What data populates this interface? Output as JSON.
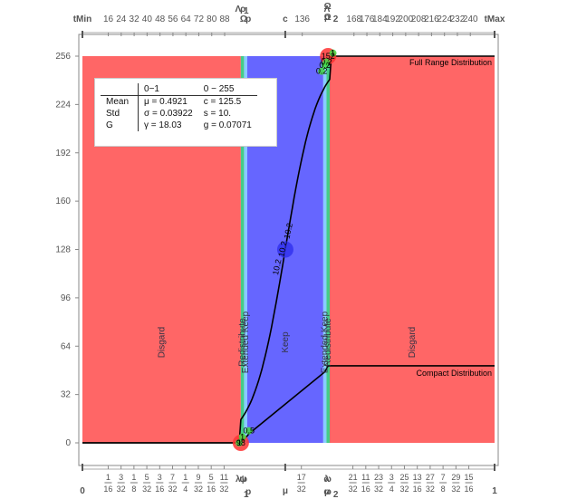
{
  "chart_data": {
    "type": "line",
    "x": {
      "range": [
        0,
        255
      ],
      "top_ticks": [
        "16",
        "24",
        "32",
        "40",
        "48",
        "56",
        "64",
        "72",
        "80",
        "88",
        "136",
        "168",
        "176",
        "184",
        "192",
        "200",
        "208",
        "216",
        "224",
        "232",
        "240"
      ],
      "top_tick_values": [
        16,
        24,
        32,
        40,
        48,
        56,
        64,
        72,
        80,
        88,
        136,
        168,
        176,
        184,
        192,
        200,
        208,
        216,
        224,
        232,
        240
      ],
      "top_special": [
        {
          "label": "tMin",
          "value": 0
        },
        {
          "label": "c",
          "value": 125.5
        },
        {
          "label": "tMax",
          "value": 255
        }
      ],
      "top_marker_labels": [
        {
          "label": "Λ",
          "value": 98
        },
        {
          "label": "Ω",
          "value": 98
        },
        {
          "label": "ρ",
          "value": 101
        },
        {
          "label": "p",
          "value": 101
        },
        {
          "label": "1",
          "value": 103
        },
        {
          "label": "Ω",
          "value": 150
        },
        {
          "label": "Λ",
          "value": 153
        },
        {
          "label": "Ω",
          "value": 150
        },
        {
          "label": "p",
          "value": 153
        },
        {
          "label": "2",
          "value": 155
        }
      ],
      "bottom_ticks_values": [
        0.0625,
        0.09375,
        0.125,
        0.15625,
        0.1875,
        0.21875,
        0.25,
        0.28125,
        0.3125,
        0.34375,
        0.53125,
        0.65625,
        0.6875,
        0.71875,
        0.75,
        0.78125,
        0.8125,
        0.84375,
        0.875,
        0.90625,
        0.9375
      ],
      "bottom_ticks_num": [
        "1",
        "3",
        "1",
        "5",
        "3",
        "7",
        "1",
        "9",
        "5",
        "11",
        "17",
        "21",
        "11",
        "23",
        "3",
        "25",
        "13",
        "27",
        "7",
        "29",
        "15"
      ],
      "bottom_ticks_den": [
        "16",
        "32",
        "8",
        "32",
        "16",
        "32",
        "4",
        "32",
        "16",
        "32",
        "32",
        "32",
        "16",
        "32",
        "4",
        "32",
        "16",
        "32",
        "8",
        "32",
        "16"
      ],
      "bottom_special": [
        {
          "label": "0",
          "value": 0
        },
        {
          "label": "μ",
          "value": 0.4921
        },
        {
          "label": "1",
          "value": 1
        }
      ],
      "bottom_marker_labels": [
        {
          "label": "λ",
          "value": 0.384
        },
        {
          "label": "ω",
          "value": 0.384
        },
        {
          "label": "ψ",
          "value": 0.396
        },
        {
          "label": "p",
          "value": 0.396
        },
        {
          "label": "1",
          "value": 0.404
        },
        {
          "label": "ω",
          "value": 0.588
        },
        {
          "label": "λ",
          "value": 0.6
        },
        {
          "label": "ω",
          "value": 0.588
        },
        {
          "label": "p",
          "value": 0.6
        },
        {
          "label": "2",
          "value": 0.608
        }
      ]
    },
    "y": {
      "range": [
        0,
        256
      ],
      "ticks": [
        0,
        32,
        64,
        96,
        128,
        160,
        192,
        224,
        256
      ]
    },
    "regions": [
      {
        "name": "discard-left",
        "label": "Disgard",
        "from": 0,
        "to": 98,
        "color": "#ff6666"
      },
      {
        "name": "redistribute-left",
        "label": "Redistribute",
        "from": 98,
        "to": 100,
        "color": "#44cc88"
      },
      {
        "name": "extended-keep-left",
        "label": "Extended Keep",
        "from": 100,
        "to": 102,
        "color": "#88ccff"
      },
      {
        "name": "keep",
        "label": "Keep",
        "from": 102,
        "to": 149,
        "color": "#6666ff"
      },
      {
        "name": "extended-keep-right",
        "label": "Extended Keep",
        "from": 149,
        "to": 151,
        "color": "#88ccff"
      },
      {
        "name": "redistribute-right",
        "label": "Redistribute",
        "from": 151,
        "to": 153,
        "color": "#44cc88"
      },
      {
        "name": "discard-right",
        "label": "Disgard",
        "from": 153,
        "to": 255,
        "color": "#ff6666"
      }
    ],
    "series": [
      {
        "name": "Full Range Distribution",
        "type": "sigmoid",
        "center": 125.5,
        "scale": 10,
        "ymax": 256
      },
      {
        "name": "Compact Distribution",
        "x": [
          0,
          98,
          100,
          103,
          150,
          152,
          255
        ],
        "y": [
          0,
          0,
          2,
          6,
          47,
          51,
          51
        ]
      }
    ],
    "points": [
      {
        "label": "98",
        "x": 98,
        "y": 0,
        "color": "#ff3333"
      },
      {
        "label": "152",
        "x": 152,
        "y": 256,
        "color": "#ff3333"
      },
      {
        "label": "",
        "x": 125.5,
        "y": 128,
        "color": "#3333ee"
      }
    ],
    "annotations": [
      "1",
      "1",
      "0.5",
      "0.2",
      "0.2",
      "0.2",
      "1"
    ],
    "curve_annotations": [
      "10.2",
      "10.2",
      "10.2"
    ]
  },
  "stats": {
    "headers": [
      "",
      "0−1",
      "0 − 255"
    ],
    "rows": [
      {
        "label": "Mean",
        "a": "μ = 0.4921",
        "b": "c = 125.5"
      },
      {
        "label": "Std",
        "a": "σ = 0.03922",
        "b": "s = 10."
      },
      {
        "label": "G",
        "a": "γ = 18.03",
        "b": "g = 0.07071"
      }
    ]
  }
}
